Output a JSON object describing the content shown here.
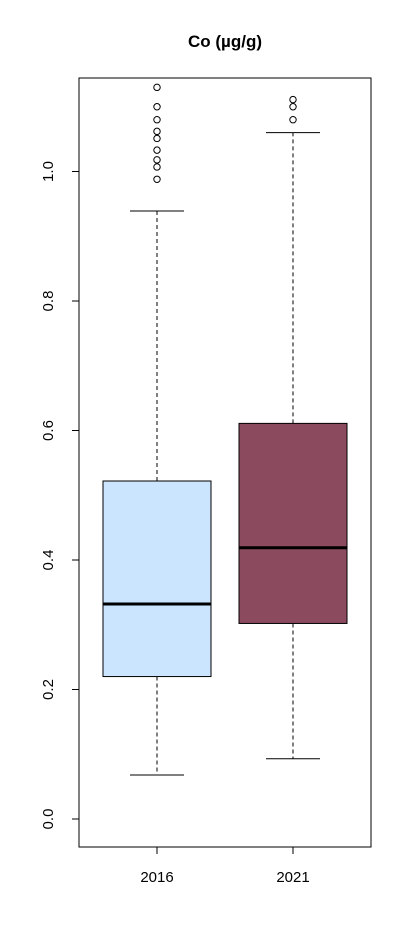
{
  "chart_data": {
    "type": "boxplot",
    "title": "Co (µg/g)",
    "xlabel": "",
    "ylabel": "",
    "ylim": [
      -0.04,
      1.145
    ],
    "y_ticks": [
      0.0,
      0.2,
      0.4,
      0.6,
      0.8,
      1.0
    ],
    "y_tick_labels": [
      "0.0",
      "0.2",
      "0.4",
      "0.6",
      "0.8",
      "1.0"
    ],
    "categories": [
      "2016",
      "2021"
    ],
    "boxes": [
      {
        "category": "2016",
        "whisker_low": 0.068,
        "q1": 0.22,
        "median": 0.332,
        "q3": 0.522,
        "whisker_high": 0.939,
        "outliers": [
          0.988,
          1.007,
          1.018,
          1.033,
          1.051,
          1.062,
          1.08,
          1.1,
          1.13
        ],
        "color": "#cce5ff"
      },
      {
        "category": "2021",
        "whisker_low": 0.093,
        "q1": 0.302,
        "median": 0.419,
        "q3": 0.611,
        "whisker_high": 1.06,
        "outliers": [
          1.08,
          1.1,
          1.111
        ],
        "color": "#8b4a5e"
      }
    ],
    "grid": false,
    "legend": "none"
  }
}
